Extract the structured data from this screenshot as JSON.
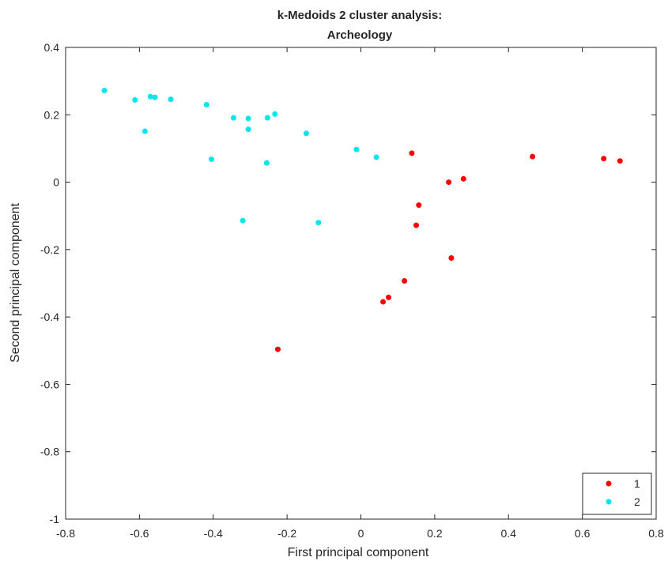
{
  "chart_data": {
    "type": "scatter",
    "title": [
      "k-Medoids 2 cluster analysis:",
      "Archeology"
    ],
    "xlabel": "First principal component",
    "ylabel": "Second principal component",
    "xlim": [
      -0.8,
      0.8
    ],
    "ylim": [
      -1,
      0.4
    ],
    "xticks": [
      "-0.8",
      "-0.6",
      "-0.4",
      "-0.2",
      "0",
      "0.2",
      "0.4",
      "0.6",
      "0.8"
    ],
    "yticks": [
      "0.4",
      "0.2",
      "0",
      "-0.2",
      "-0.4",
      "-0.6",
      "-0.8",
      "-1"
    ],
    "grid": false,
    "legend_position": "bottom-right",
    "series": [
      {
        "name": "1",
        "color": "#ff0000",
        "points": [
          [
            0.138,
            0.086
          ],
          [
            0.238,
            0.0
          ],
          [
            0.278,
            0.01
          ],
          [
            0.465,
            0.076
          ],
          [
            0.658,
            0.07
          ],
          [
            0.702,
            0.063
          ],
          [
            0.157,
            -0.068
          ],
          [
            0.15,
            -0.128
          ],
          [
            0.245,
            -0.225
          ],
          [
            0.118,
            -0.293
          ],
          [
            0.075,
            -0.342
          ],
          [
            0.06,
            -0.355
          ],
          [
            -0.225,
            -0.496
          ]
        ]
      },
      {
        "name": "2",
        "color": "#00e5ee",
        "points": [
          [
            -0.695,
            0.272
          ],
          [
            -0.612,
            0.244
          ],
          [
            -0.57,
            0.254
          ],
          [
            -0.558,
            0.252
          ],
          [
            -0.515,
            0.246
          ],
          [
            -0.418,
            0.23
          ],
          [
            -0.585,
            0.151
          ],
          [
            -0.345,
            0.191
          ],
          [
            -0.305,
            0.189
          ],
          [
            -0.305,
            0.157
          ],
          [
            -0.253,
            0.191
          ],
          [
            -0.233,
            0.202
          ],
          [
            -0.148,
            0.145
          ],
          [
            -0.405,
            0.068
          ],
          [
            -0.255,
            0.057
          ],
          [
            -0.012,
            0.097
          ],
          [
            0.042,
            0.074
          ],
          [
            -0.32,
            -0.114
          ],
          [
            -0.115,
            -0.12
          ]
        ]
      }
    ]
  }
}
